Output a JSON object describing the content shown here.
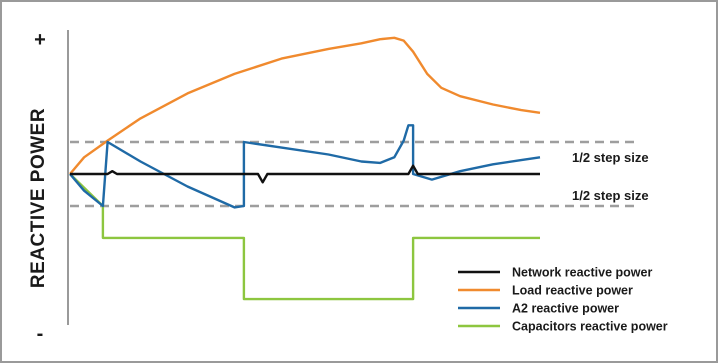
{
  "chart_data": {
    "type": "line",
    "title": "",
    "xlabel": "",
    "ylabel": "REACTIVE POWER",
    "y_axis_signs": {
      "top": "+",
      "bottom": "-"
    },
    "xlim": [
      0,
      100
    ],
    "ylim": [
      -100,
      100
    ],
    "grid": false,
    "legend_position": "bottom-right",
    "thresholds": [
      {
        "label": "1/2 step size",
        "value": 23
      },
      {
        "label": "1/2 step size",
        "value": -23
      }
    ],
    "series": [
      {
        "name": "Network reactive power",
        "color": "#111111",
        "points": [
          [
            0,
            0
          ],
          [
            8,
            0
          ],
          [
            9,
            2
          ],
          [
            10,
            0
          ],
          [
            40,
            0
          ],
          [
            41,
            -6
          ],
          [
            42,
            0
          ],
          [
            72,
            0
          ],
          [
            73,
            6
          ],
          [
            74,
            0
          ],
          [
            100,
            0
          ]
        ]
      },
      {
        "name": "Load reactive power",
        "color": "#f08a2e",
        "points": [
          [
            0,
            0
          ],
          [
            3,
            12
          ],
          [
            8,
            24
          ],
          [
            15,
            40
          ],
          [
            25,
            58
          ],
          [
            35,
            72
          ],
          [
            45,
            83
          ],
          [
            55,
            90
          ],
          [
            62,
            94
          ],
          [
            66,
            97
          ],
          [
            69,
            98
          ],
          [
            71,
            96
          ],
          [
            73,
            88
          ],
          [
            76,
            72
          ],
          [
            79,
            62
          ],
          [
            83,
            56
          ],
          [
            90,
            50
          ],
          [
            96,
            46
          ],
          [
            100,
            44
          ]
        ]
      },
      {
        "name": "A2 reactive power",
        "color": "#1f6aa6",
        "points": [
          [
            0,
            0
          ],
          [
            3,
            -12
          ],
          [
            7,
            -23
          ],
          [
            8,
            23
          ],
          [
            15,
            9
          ],
          [
            25,
            -9
          ],
          [
            35,
            -24
          ],
          [
            37,
            -23
          ],
          [
            37,
            23
          ],
          [
            45,
            19
          ],
          [
            55,
            14
          ],
          [
            62,
            9
          ],
          [
            66,
            8
          ],
          [
            69,
            12
          ],
          [
            71,
            24
          ],
          [
            72,
            35
          ],
          [
            73,
            35
          ],
          [
            73,
            0
          ],
          [
            77,
            -4
          ],
          [
            83,
            2
          ],
          [
            90,
            7
          ],
          [
            96,
            10
          ],
          [
            100,
            12
          ]
        ]
      },
      {
        "name": "Capacitors reactive power",
        "color": "#8dc63f",
        "points": [
          [
            0,
            0
          ],
          [
            7,
            -23
          ],
          [
            7,
            -46
          ],
          [
            37,
            -46
          ],
          [
            37,
            -90
          ],
          [
            73,
            -90
          ],
          [
            73,
            -46
          ],
          [
            100,
            -46
          ]
        ]
      }
    ]
  }
}
